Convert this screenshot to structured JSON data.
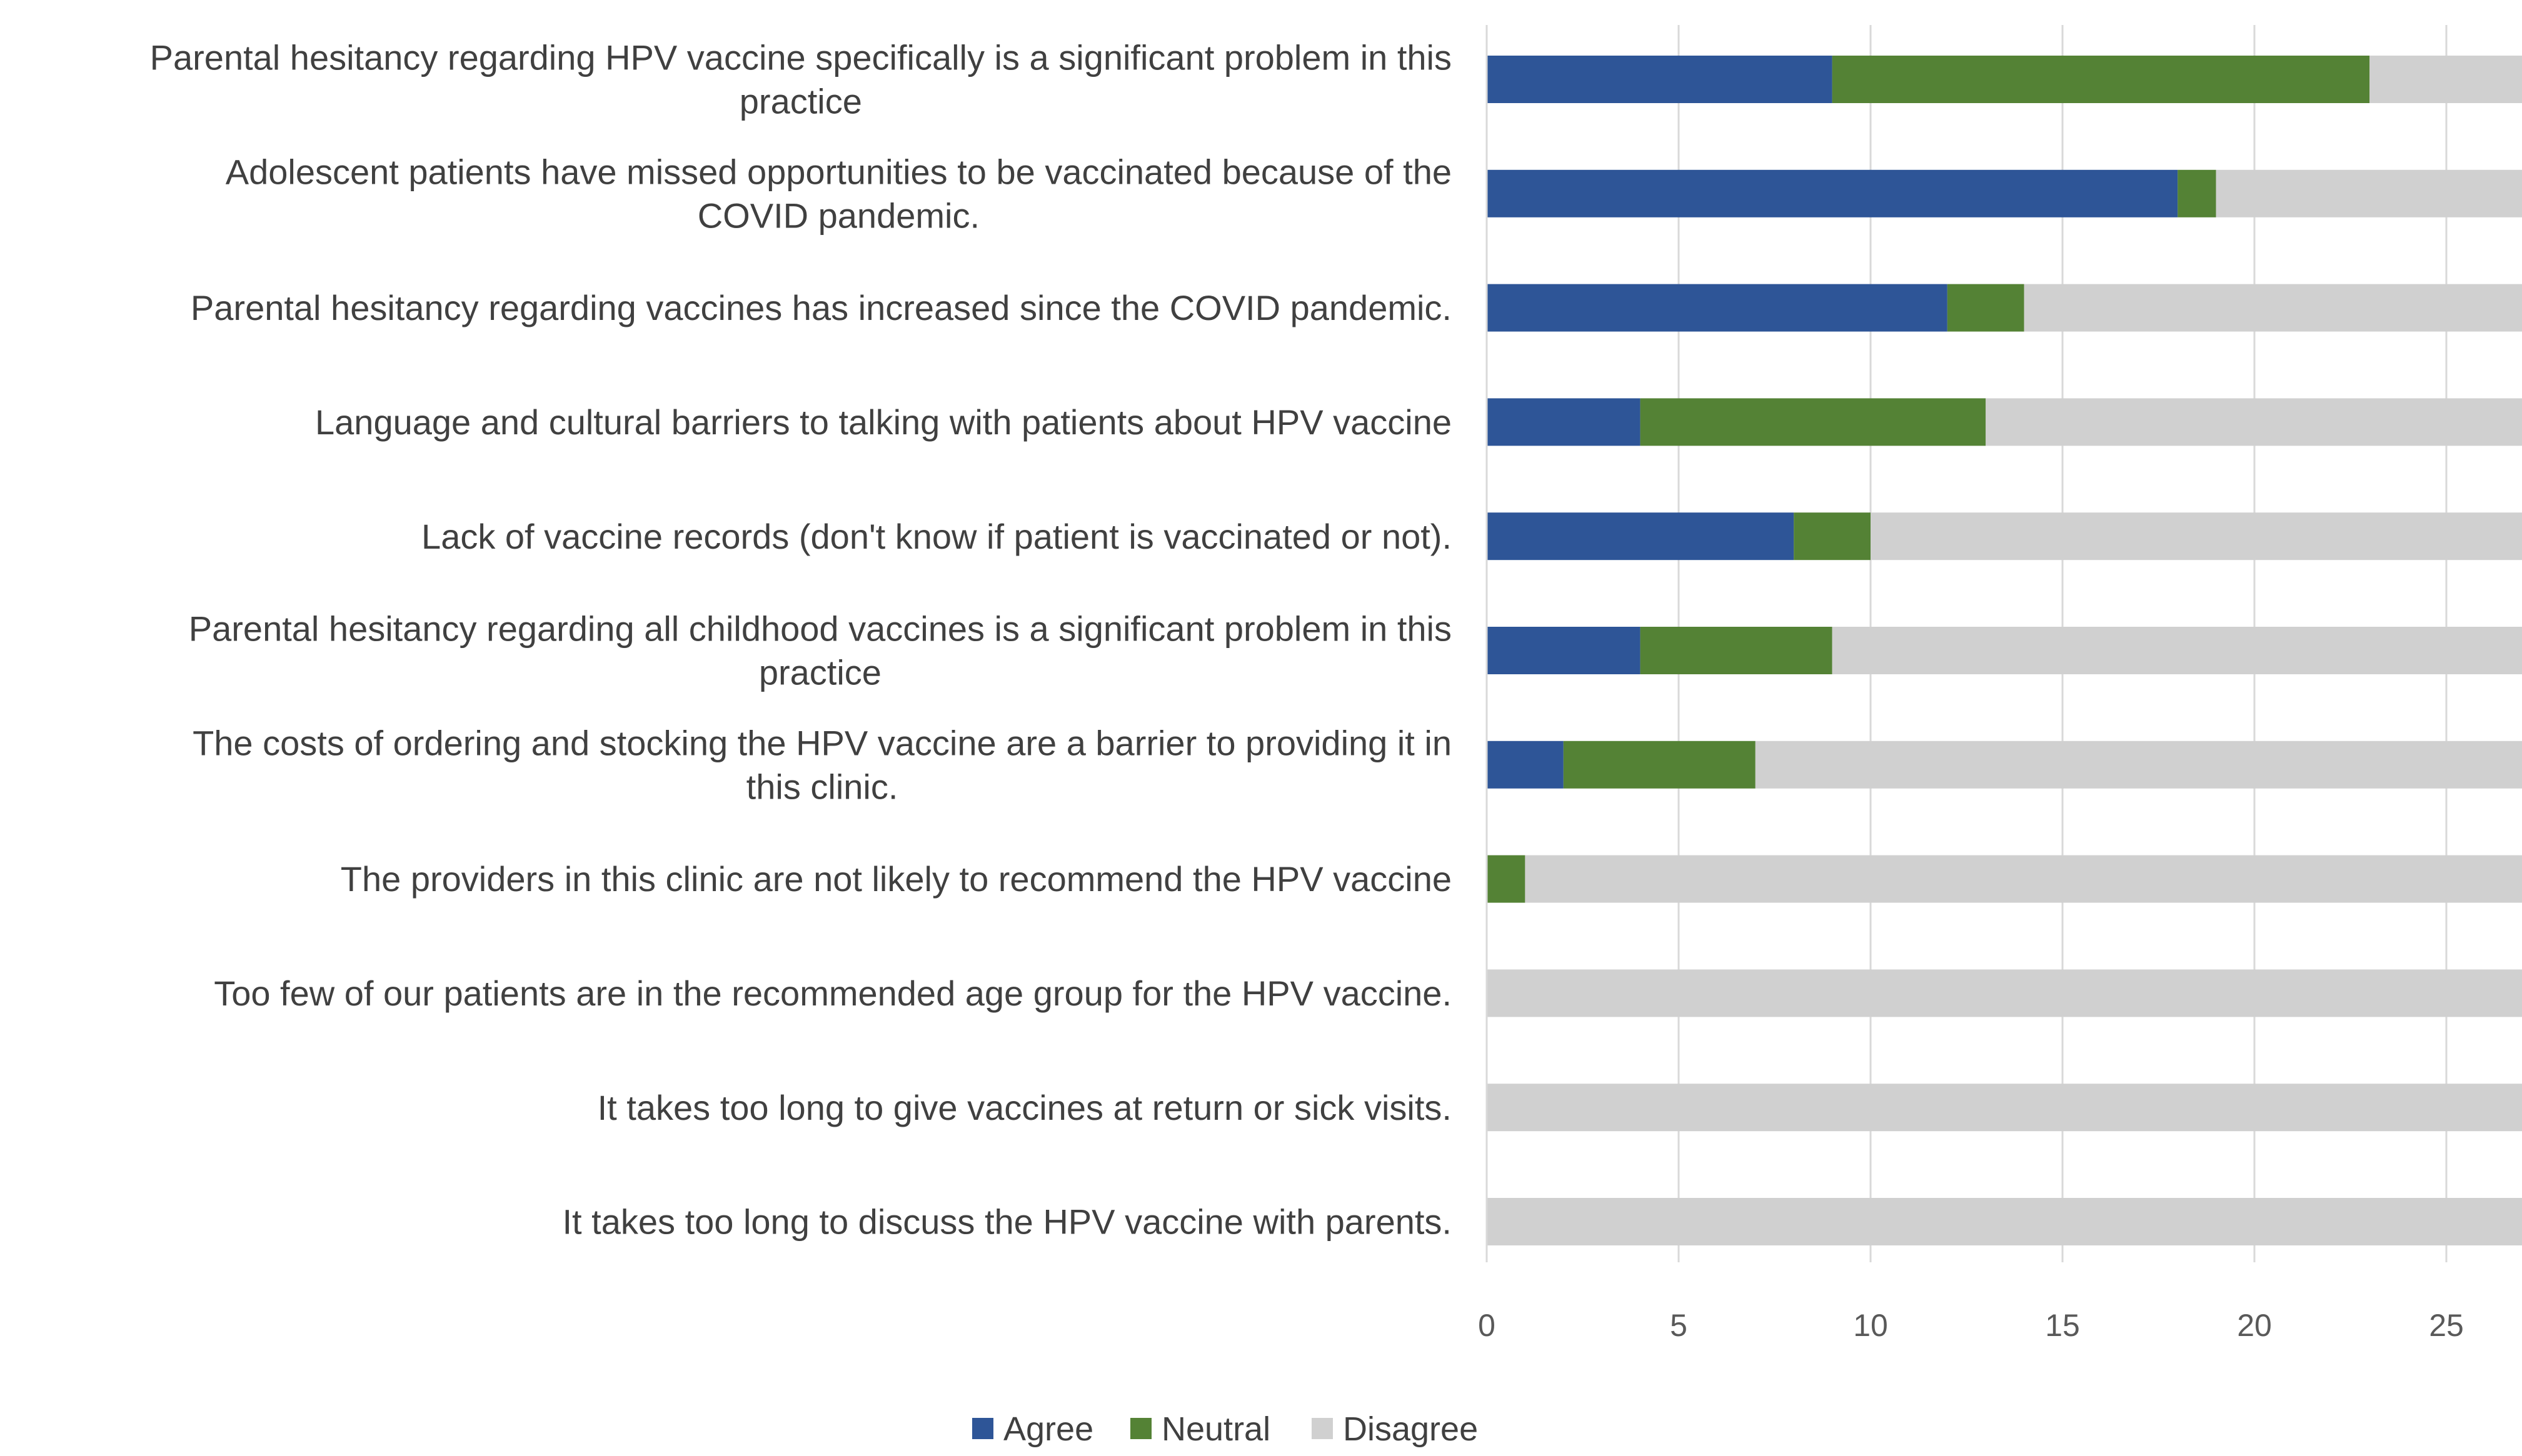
{
  "chart_data": {
    "type": "bar",
    "orientation": "horizontal",
    "stacked": true,
    "title": "",
    "xlabel": "",
    "ylabel": "",
    "xlim": [
      0,
      27
    ],
    "x_ticks": [
      0,
      5,
      10,
      15,
      20,
      25
    ],
    "grid": "vertical",
    "legend_position": "bottom-center",
    "categories": [
      [
        "Parental hesitancy regarding HPV vaccine specifically is a significant problem in this",
        "practice"
      ],
      [
        "Adolescent patients have missed opportunities to be vaccinated because of the",
        "COVID pandemic."
      ],
      [
        "Parental hesitancy regarding vaccines has increased since the COVID pandemic."
      ],
      [
        "Language and cultural barriers to talking with patients about HPV vaccine"
      ],
      [
        "Lack of vaccine records (don't know if patient is vaccinated or not)."
      ],
      [
        "Parental hesitancy regarding all childhood vaccines is a significant problem in this",
        "practice"
      ],
      [
        "The costs of ordering and stocking the HPV vaccine are a barrier to providing it in",
        "this clinic."
      ],
      [
        "The providers in this clinic are not likely to recommend the HPV vaccine"
      ],
      [
        "Too few of our patients are in the recommended age group for the HPV vaccine."
      ],
      [
        "It takes too long to give vaccines at return or sick visits."
      ],
      [
        "It takes too long to discuss the HPV vaccine with parents."
      ]
    ],
    "series": [
      {
        "name": "Agree",
        "color": "#2e5597",
        "values": [
          9,
          18,
          12,
          4,
          8,
          4,
          2,
          0,
          0,
          0,
          0
        ]
      },
      {
        "name": "Neutral",
        "color": "#548235",
        "values": [
          14,
          1,
          2,
          9,
          2,
          5,
          5,
          1,
          0,
          0,
          0
        ]
      },
      {
        "name": "Disagree",
        "color": "#d0d0d0",
        "values": [
          4,
          8,
          13,
          14,
          17,
          18,
          20,
          26,
          27,
          27,
          27
        ]
      }
    ]
  }
}
